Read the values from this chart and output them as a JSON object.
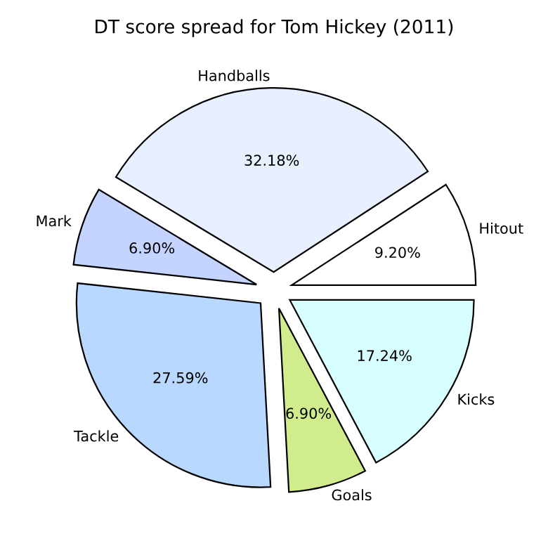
{
  "chart_data": {
    "type": "pie",
    "title": "DT score spread for Tom Hickey (2011)",
    "categories": [
      "Hitout",
      "Handballs",
      "Mark",
      "Tackle",
      "Goals",
      "Kicks"
    ],
    "values": [
      9.2,
      32.18,
      6.9,
      27.59,
      6.9,
      17.24
    ],
    "value_labels": [
      "9.20%",
      "32.18%",
      "6.90%",
      "27.59%",
      "6.90%",
      "17.24%"
    ],
    "colors": [
      "#ffffff",
      "#e8f0ff",
      "#c4d4ff",
      "#b8d8ff",
      "#d0ec8c",
      "#d8ffff"
    ]
  }
}
